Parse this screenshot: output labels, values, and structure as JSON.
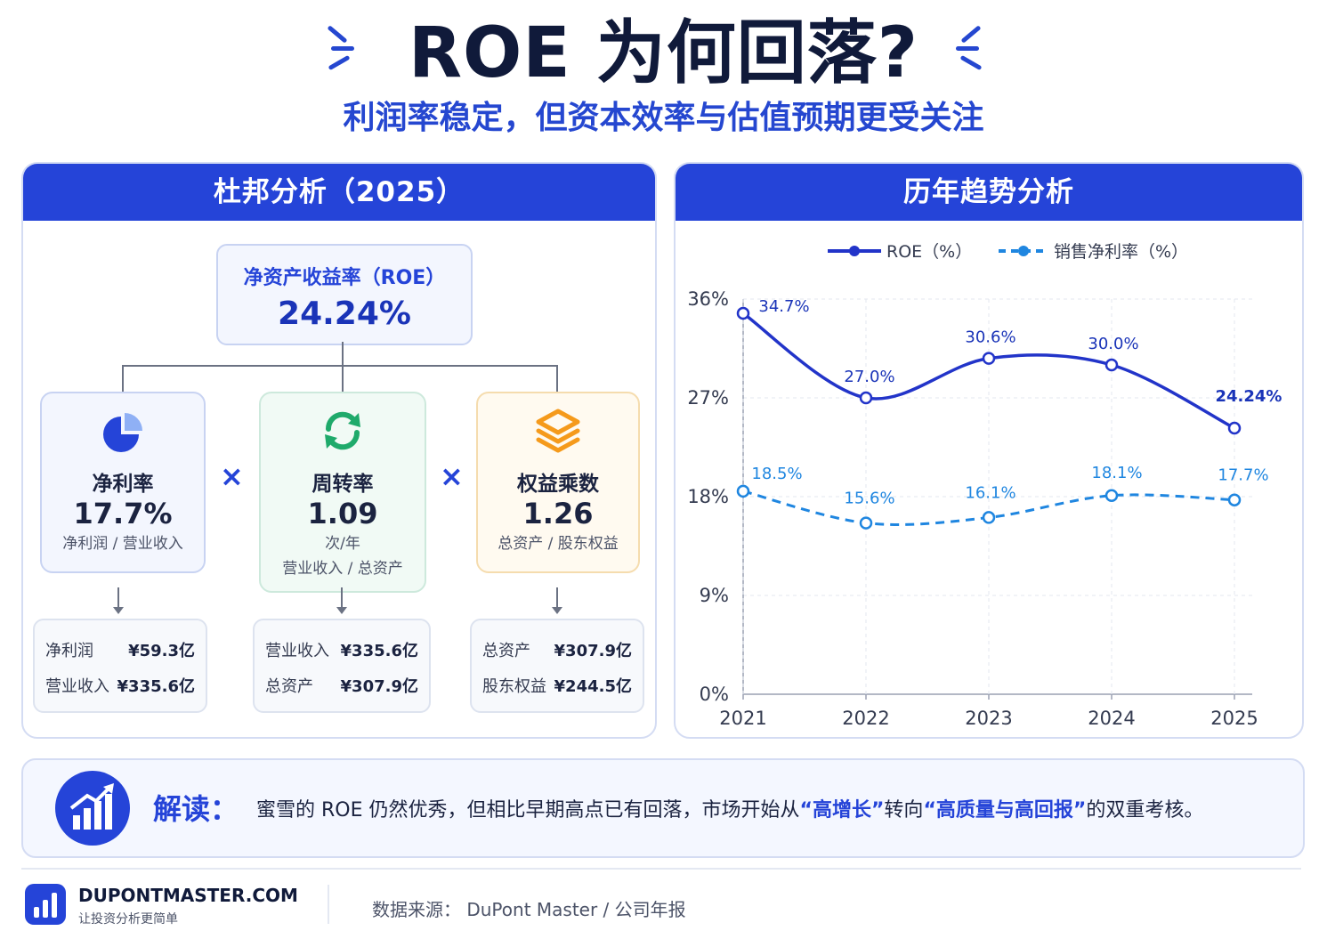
{
  "header": {
    "title": "ROE 为何回落?",
    "subtitle": "利润率稳定，但资本效率与估值预期更受关注"
  },
  "dupont": {
    "panel_title": "杜邦分析（2025）",
    "roe": {
      "label": "净资产收益率（ROE）",
      "value": "24.24%"
    },
    "times": "×",
    "factors": [
      {
        "name": "净利率",
        "value": "17.7%",
        "desc": [
          "净利润 / 营业收入"
        ],
        "icon": "pie-chart-icon",
        "sub": [
          {
            "k": "净利润",
            "v": "¥59.3亿"
          },
          {
            "k": "营业收入",
            "v": "¥335.6亿"
          }
        ]
      },
      {
        "name": "周转率",
        "value": "1.09",
        "desc": [
          "次/年",
          "营业收入 / 总资产"
        ],
        "icon": "refresh-icon",
        "sub": [
          {
            "k": "营业收入",
            "v": "¥335.6亿"
          },
          {
            "k": "总资产",
            "v": "¥307.9亿"
          }
        ]
      },
      {
        "name": "权益乘数",
        "value": "1.26",
        "desc": [
          "总资产 / 股东权益"
        ],
        "icon": "layers-icon",
        "sub": [
          {
            "k": "总资产",
            "v": "¥307.9亿"
          },
          {
            "k": "股东权益",
            "v": "¥244.5亿"
          }
        ]
      }
    ],
    "colors": {
      "blue": "#2544d8",
      "green": "#1faa6b",
      "orange": "#f59a1b"
    }
  },
  "trend": {
    "panel_title": "历年趋势分析"
  },
  "chart_data": {
    "type": "line",
    "x": [
      "2021",
      "2022",
      "2023",
      "2024",
      "2025"
    ],
    "y_ticks": [
      "36%",
      "27%",
      "18%",
      "9%",
      "0%"
    ],
    "ylim": [
      0,
      36
    ],
    "grid": true,
    "legend_position": "top",
    "series": [
      {
        "name": "ROE（%）",
        "values": [
          34.7,
          27.0,
          30.6,
          30.0,
          24.24
        ],
        "labels": [
          "34.7%",
          "27.0%",
          "30.6%",
          "30.0%",
          "24.24%"
        ],
        "color": "#2234c9",
        "style": "solid"
      },
      {
        "name": "销售净利率（%）",
        "values": [
          18.5,
          15.6,
          16.1,
          18.1,
          17.7
        ],
        "labels": [
          "18.5%",
          "15.6%",
          "16.1%",
          "18.1%",
          "17.7%"
        ],
        "color": "#1f86e0",
        "style": "dashed"
      }
    ]
  },
  "insight": {
    "lead": "解读：",
    "text_1": "蜜雪的 ROE 仍然优秀，但相比早期高点已有回落，市场开始从",
    "hl_1": "“高增长”",
    "text_2": "转向",
    "hl_2": "“高质量与高回报”",
    "text_3": "的双重考核。",
    "icon": "growth-chart-icon"
  },
  "footer": {
    "brand": "DUPONTMASTER.COM",
    "tagline": "让投资分析更简单",
    "source": "数据来源：  DuPont Master / 公司年报"
  }
}
